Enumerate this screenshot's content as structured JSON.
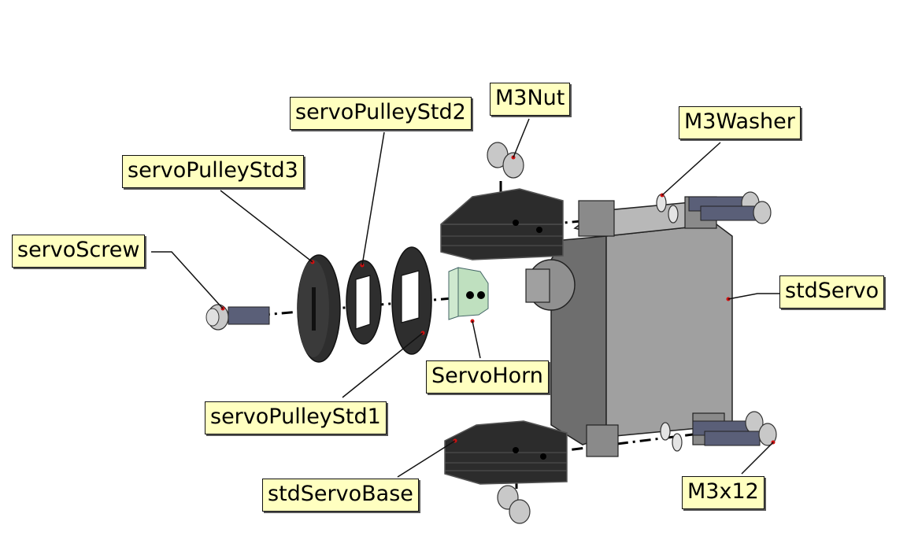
{
  "labels": {
    "servoScrew": "servoScrew",
    "servoPulleyStd3": "servoPulleyStd3",
    "servoPulleyStd2": "servoPulleyStd2",
    "servoPulleyStd1": "servoPulleyStd1",
    "m3Nut": "M3Nut",
    "m3Washer": "M3Washer",
    "stdServo": "stdServo",
    "servoHorn": "ServoHorn",
    "stdServoBase": "stdServoBase",
    "m3x12": "M3x12"
  },
  "colors": {
    "callout_fill": "#ffffc0",
    "part_dark": "#3a3a3a",
    "servo_body": "#9a9a9a",
    "horn": "#cfe9cf",
    "screw_thread": "#5a5f78",
    "marker": "#d01010"
  }
}
